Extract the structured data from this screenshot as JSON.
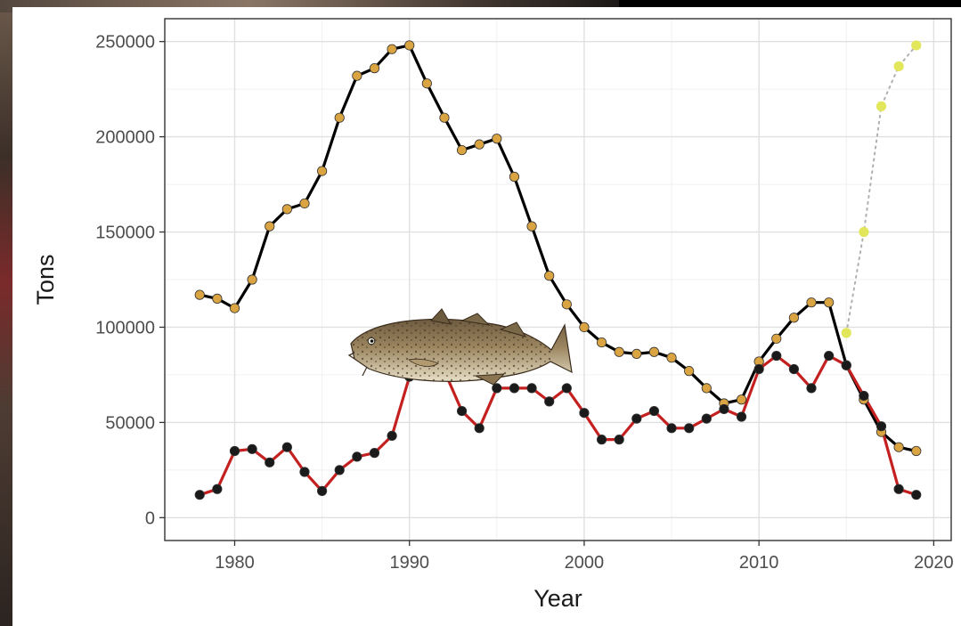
{
  "chart_data": {
    "type": "line",
    "xlabel": "Year",
    "ylabel": "Tons",
    "xlim": [
      1976,
      2021
    ],
    "ylim": [
      -12000,
      262000
    ],
    "x_ticks": [
      1980,
      1990,
      2000,
      2010,
      2020
    ],
    "y_ticks": [
      0,
      50000,
      100000,
      150000,
      200000,
      250000
    ],
    "x_tick_labels": [
      "1980",
      "1990",
      "2000",
      "2010",
      "2020"
    ],
    "y_tick_labels": [
      "0",
      "50000",
      "100000",
      "150000",
      "200000",
      "250000"
    ],
    "grid": true,
    "series": [
      {
        "line_color": "#000000",
        "point_color": "#d9a441",
        "line_style": "solid",
        "x": [
          1978,
          1979,
          1980,
          1981,
          1982,
          1983,
          1984,
          1985,
          1986,
          1987,
          1988,
          1989,
          1990,
          1991,
          1992,
          1993,
          1994,
          1995,
          1996,
          1997,
          1998,
          1999,
          2000,
          2001,
          2002,
          2003,
          2004,
          2005,
          2006,
          2007,
          2008,
          2009,
          2010,
          2011,
          2012,
          2013,
          2014,
          2015,
          2016,
          2017,
          2018,
          2019
        ],
        "y": [
          117000,
          115000,
          110000,
          125000,
          153000,
          162000,
          165000,
          182000,
          210000,
          232000,
          236000,
          246000,
          248000,
          228000,
          210000,
          193000,
          196000,
          199000,
          179000,
          153000,
          127000,
          112000,
          100000,
          92000,
          87000,
          86000,
          87000,
          84000,
          77000,
          68000,
          60000,
          62000,
          82000,
          94000,
          105000,
          113000,
          113000,
          80000,
          62000,
          45000,
          37000,
          35000
        ]
      },
      {
        "line_color": "#c42020",
        "point_color": "#1a1a1a",
        "line_style": "solid",
        "x": [
          1978,
          1979,
          1980,
          1981,
          1982,
          1983,
          1984,
          1985,
          1986,
          1987,
          1988,
          1989,
          1990,
          1991,
          1992,
          1993,
          1994,
          1995,
          1996,
          1997,
          1998,
          1999,
          2000,
          2001,
          2002,
          2003,
          2004,
          2005,
          2006,
          2007,
          2008,
          2009,
          2010,
          2011,
          2012,
          2013,
          2014,
          2015,
          2016,
          2017,
          2018,
          2019
        ],
        "y": [
          12000,
          15000,
          35000,
          36000,
          29000,
          37000,
          24000,
          14000,
          25000,
          32000,
          34000,
          43000,
          74000,
          76000,
          77000,
          56000,
          47000,
          68000,
          68000,
          68000,
          61000,
          68000,
          55000,
          41000,
          41000,
          52000,
          56000,
          47000,
          47000,
          52000,
          57000,
          53000,
          78000,
          85000,
          78000,
          68000,
          85000,
          80000,
          64000,
          48000,
          15000,
          12000
        ]
      },
      {
        "line_color": "#b0b0b0",
        "point_color": "#e2e65a",
        "line_style": "dotted",
        "x": [
          2015,
          2016,
          2017,
          2018,
          2019
        ],
        "y": [
          97000,
          150000,
          216000,
          237000,
          248000
        ]
      }
    ]
  }
}
